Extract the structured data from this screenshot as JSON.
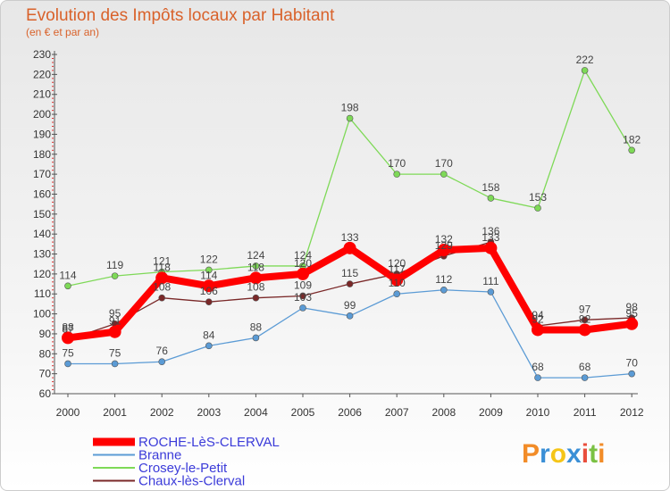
{
  "chart_data": {
    "type": "line",
    "title": "Evolution des Impôts locaux par Habitant",
    "subtitle": "(en € et par an)",
    "xlabel": "",
    "ylabel": "",
    "x": [
      "2000",
      "2001",
      "2002",
      "2003",
      "2004",
      "2005",
      "2006",
      "2007",
      "2008",
      "2009",
      "2010",
      "2011",
      "2012"
    ],
    "y_ticks": [
      60,
      70,
      80,
      90,
      100,
      110,
      120,
      130,
      140,
      150,
      160,
      170,
      180,
      190,
      200,
      210,
      220,
      230
    ],
    "ylim": [
      60,
      230
    ],
    "grid": false,
    "legend_position": "bottom-left",
    "series": [
      {
        "name": "Crosey-le-Petit",
        "color": "#7ed957",
        "emphasis": false,
        "values": [
          114,
          119,
          121,
          122,
          124,
          124,
          198,
          170,
          170,
          158,
          153,
          222,
          182
        ],
        "labels": [
          "114",
          "119",
          "121",
          "122",
          "124",
          "124",
          "198",
          "170",
          "170",
          "158",
          "153",
          "222",
          "182"
        ]
      },
      {
        "name": "Chaux-lès-Clerval",
        "color": "#7a2828",
        "emphasis": false,
        "values": [
          87,
          95,
          108,
          106,
          108,
          109,
          115,
          120,
          129,
          136,
          94,
          97,
          98
        ],
        "labels": [
          "87",
          "95",
          "108",
          "106",
          "108",
          "109",
          "115",
          "120",
          "129",
          "136",
          "94",
          "97",
          "98"
        ]
      },
      {
        "name": "Branne",
        "color": "#5b9bd5",
        "emphasis": false,
        "values": [
          75,
          75,
          76,
          84,
          88,
          103,
          99,
          110,
          112,
          111,
          68,
          68,
          70
        ],
        "labels": [
          "75",
          "75",
          "76",
          "84",
          "88",
          "103",
          "99",
          "110",
          "112",
          "111",
          "68",
          "68",
          "70"
        ]
      },
      {
        "name": "ROCHE-LèS-CLERVAL",
        "color": "#ff0000",
        "emphasis": true,
        "values": [
          88,
          91,
          118,
          114,
          118,
          120,
          133,
          117,
          132,
          133,
          92,
          92,
          95
        ],
        "labels": [
          "88",
          "91",
          "118",
          "114",
          "118",
          "120",
          "133",
          "117",
          "132",
          "133",
          "92",
          "92",
          "95"
        ]
      }
    ]
  },
  "legend_order": [
    "ROCHE-LèS-CLERVAL",
    "Branne",
    "Crosey-le-Petit",
    "Chaux-lès-Clerval"
  ],
  "logo": {
    "letters": [
      "P",
      "r",
      "o",
      "x",
      "i",
      "t",
      "i"
    ],
    "colors": [
      "#f28c28",
      "#3a8fd6",
      "#f5c518",
      "#3a8fd6",
      "#e94e3c",
      "#7ac143",
      "#f28c28"
    ]
  }
}
